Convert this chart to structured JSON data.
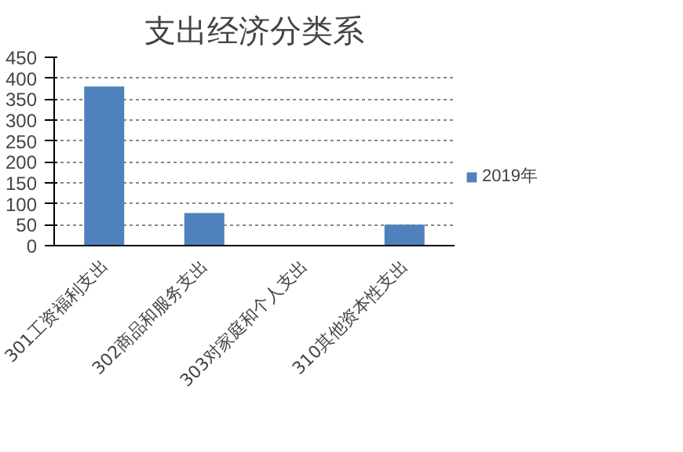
{
  "chart_data": {
    "type": "bar",
    "title": "支出经济分类系",
    "categories": [
      "301工资福利支出",
      "302商品和服务支出",
      "303对家庭和个人支出",
      "310其他资本性支出"
    ],
    "series": [
      {
        "name": "2019年",
        "color": "#4f81bd",
        "values": [
          380,
          78,
          0,
          50
        ]
      }
    ],
    "ylim": [
      0,
      450
    ],
    "yticks": [
      0,
      50,
      100,
      150,
      200,
      250,
      300,
      350,
      400,
      450
    ],
    "grid": "y",
    "legend": "right"
  }
}
